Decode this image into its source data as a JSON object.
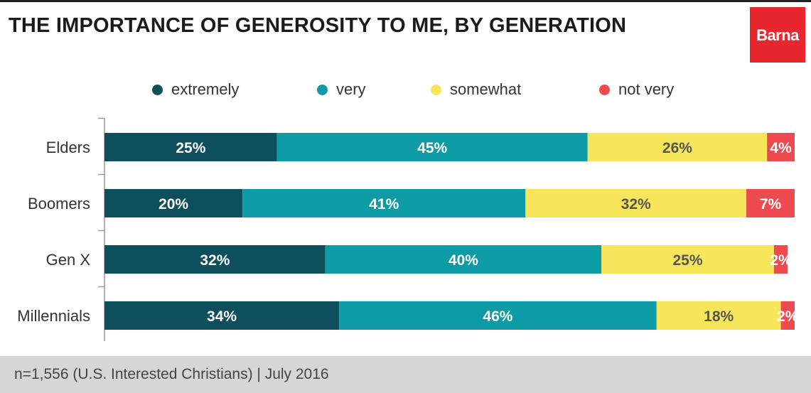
{
  "header": {
    "title": "THE IMPORTANCE OF GENEROSITY TO ME, BY GENERATION",
    "logo_text": "Barna"
  },
  "footer": {
    "note": "n=1,556 (U.S. Interested Christians) | July 2016"
  },
  "colors": {
    "extremely": "#0d4f5c",
    "very": "#0d9ba5",
    "somewhat": "#f7e65a",
    "not_very": "#ef4a4f",
    "brand": "#e8262d"
  },
  "chart_data": {
    "type": "bar",
    "orientation": "horizontal",
    "stacked": true,
    "categories": [
      "Elders",
      "Boomers",
      "Gen X",
      "Millennials"
    ],
    "series": [
      {
        "name": "extremely",
        "values": [
          25,
          20,
          32,
          34
        ],
        "color": "#0d4f5c",
        "label_color": "#ffffff"
      },
      {
        "name": "very",
        "values": [
          45,
          41,
          40,
          46
        ],
        "color": "#0d9ba5",
        "label_color": "#ffffff"
      },
      {
        "name": "somewhat",
        "values": [
          26,
          32,
          25,
          18
        ],
        "color": "#f7e65a",
        "label_color": "#555555"
      },
      {
        "name": "not very",
        "values": [
          4,
          7,
          2,
          2
        ],
        "color": "#ef4a4f",
        "label_color": "#ffffff"
      }
    ],
    "value_suffix": "%",
    "xlim": [
      0,
      100
    ],
    "legend_position": "top",
    "grid": false
  }
}
